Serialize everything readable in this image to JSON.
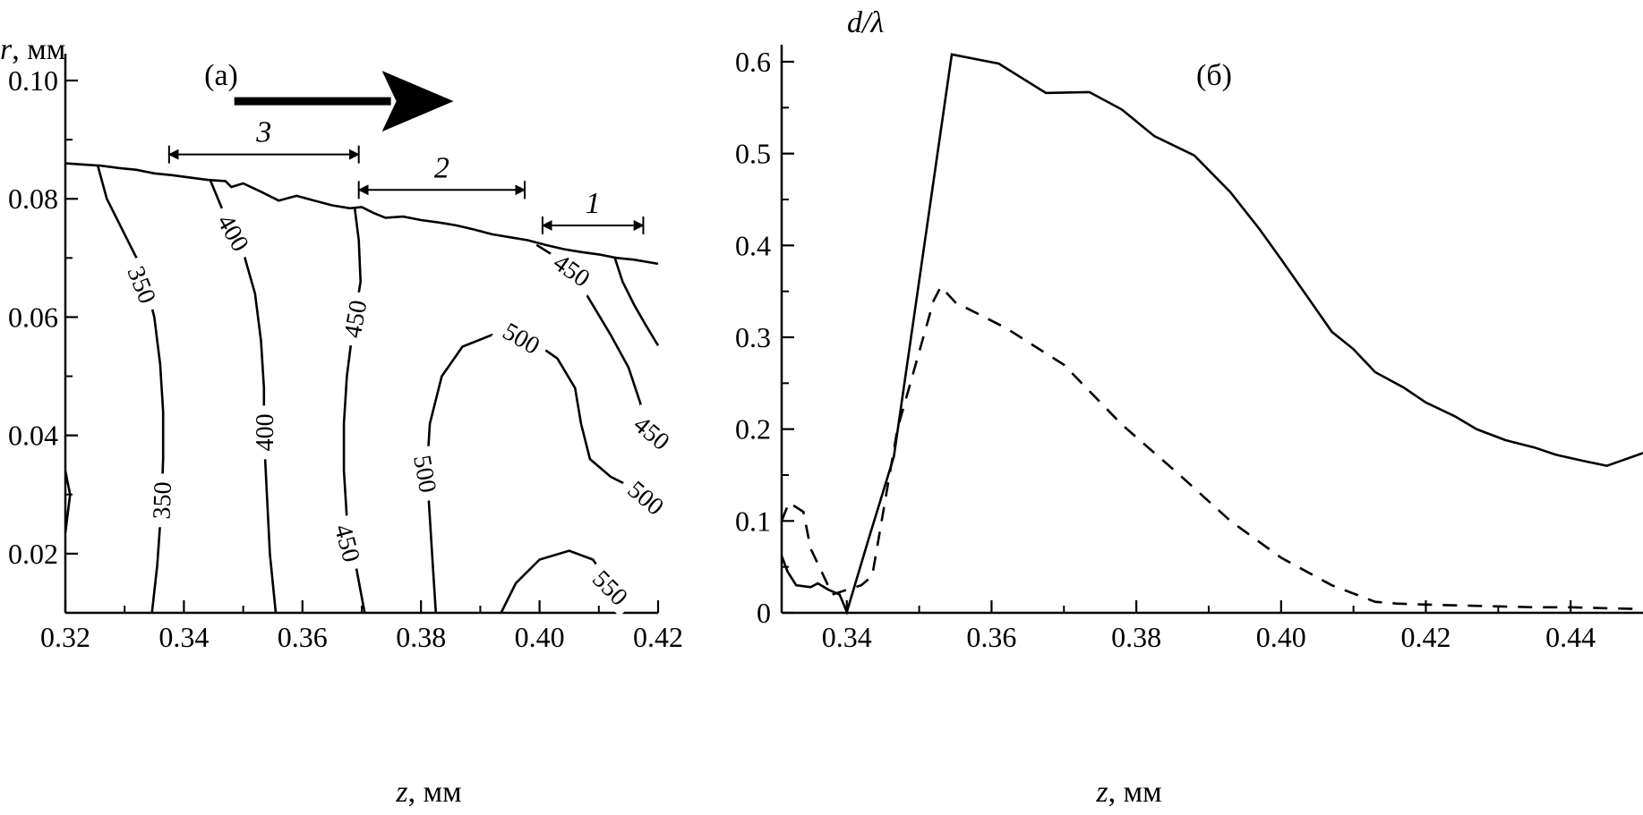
{
  "chart_data": [
    {
      "type": "line",
      "panel_label": "(а)",
      "xlabel_var": "z",
      "xlabel_unit": ", мм",
      "ylabel_var": "r",
      "ylabel_unit": ", мм",
      "xlim": [
        0.32,
        0.42
      ],
      "ylim": [
        0.01,
        0.1
      ],
      "x_ticks": [
        "0.32",
        "0.34",
        "0.36",
        "0.38",
        "0.40",
        "0.42"
      ],
      "y_ticks": [
        "0.02",
        "0.04",
        "0.06",
        "0.08",
        "0.10"
      ],
      "interface": [
        [
          0.32,
          0.086
        ],
        [
          0.323,
          0.0858
        ],
        [
          0.326,
          0.0856
        ],
        [
          0.329,
          0.0852
        ],
        [
          0.332,
          0.0849
        ],
        [
          0.335,
          0.0843
        ],
        [
          0.338,
          0.084
        ],
        [
          0.341,
          0.0836
        ],
        [
          0.344,
          0.0832
        ],
        [
          0.347,
          0.083
        ],
        [
          0.348,
          0.082
        ],
        [
          0.35,
          0.0826
        ],
        [
          0.353,
          0.0812
        ],
        [
          0.356,
          0.0797
        ],
        [
          0.359,
          0.0805
        ],
        [
          0.362,
          0.0797
        ],
        [
          0.365,
          0.0789
        ],
        [
          0.368,
          0.0784
        ],
        [
          0.37,
          0.0786
        ],
        [
          0.372,
          0.0776
        ],
        [
          0.374,
          0.0768
        ],
        [
          0.377,
          0.077
        ],
        [
          0.38,
          0.0764
        ],
        [
          0.383,
          0.076
        ],
        [
          0.386,
          0.0755
        ],
        [
          0.389,
          0.0748
        ],
        [
          0.392,
          0.074
        ],
        [
          0.395,
          0.0735
        ],
        [
          0.398,
          0.073
        ],
        [
          0.401,
          0.0722
        ],
        [
          0.404,
          0.0715
        ],
        [
          0.407,
          0.071
        ],
        [
          0.41,
          0.0706
        ],
        [
          0.413,
          0.07
        ],
        [
          0.416,
          0.0697
        ],
        [
          0.42,
          0.069
        ]
      ],
      "contours": [
        {
          "level": "350",
          "points": [
            [
              0.3255,
              0.0855
            ],
            [
              0.327,
              0.08
            ],
            [
              0.33,
              0.074
            ],
            [
              0.333,
              0.068
            ],
            [
              0.335,
              0.06
            ],
            [
              0.336,
              0.052
            ],
            [
              0.3365,
              0.044
            ],
            [
              0.3365,
              0.036
            ],
            [
              0.3362,
              0.028
            ],
            [
              0.3355,
              0.018
            ],
            [
              0.3346,
              0.01
            ]
          ],
          "labels": [
            {
              "text": "350",
              "at": [
                0.333,
                0.0655
              ],
              "rot": 68
            },
            {
              "text": "350",
              "at": [
                0.3362,
                0.029
              ],
              "rot": -88
            }
          ]
        },
        {
          "level": "400",
          "points": [
            [
              0.3445,
              0.083
            ],
            [
              0.347,
              0.077
            ],
            [
              0.35,
              0.071
            ],
            [
              0.352,
              0.064
            ],
            [
              0.353,
              0.056
            ],
            [
              0.3535,
              0.048
            ],
            [
              0.3535,
              0.04
            ],
            [
              0.354,
              0.03
            ],
            [
              0.3545,
              0.02
            ],
            [
              0.3555,
              0.01
            ]
          ],
          "labels": [
            {
              "text": "400",
              "at": [
                0.3484,
                0.0743
              ],
              "rot": 60
            },
            {
              "text": "400",
              "at": [
                0.3535,
                0.0405
              ],
              "rot": -90
            }
          ]
        },
        {
          "level": "450",
          "points": [
            [
              0.3688,
              0.0785
            ],
            [
              0.3695,
              0.073
            ],
            [
              0.3698,
              0.066
            ],
            [
              0.3685,
              0.058
            ],
            [
              0.3675,
              0.05
            ],
            [
              0.367,
              0.042
            ],
            [
              0.367,
              0.034
            ],
            [
              0.3675,
              0.026
            ],
            [
              0.369,
              0.018
            ],
            [
              0.3705,
              0.01
            ]
          ],
          "labels": [
            {
              "text": "450",
              "at": [
                0.3688,
                0.0597
              ],
              "rot": -80
            },
            {
              "text": "450",
              "at": [
                0.3677,
                0.0218
              ],
              "rot": 75
            }
          ]
        },
        {
          "level": "450",
          "points": [
            [
              0.3995,
              0.0722
            ],
            [
              0.403,
              0.07
            ],
            [
              0.406,
              0.067
            ],
            [
              0.409,
              0.062
            ],
            [
              0.412,
              0.057
            ],
            [
              0.415,
              0.0515
            ],
            [
              0.417,
              0.0455
            ],
            [
              0.418,
              0.041
            ],
            [
              0.4205,
              0.039
            ]
          ],
          "labels": [
            {
              "text": "450",
              "at": [
                0.4055,
                0.068
              ],
              "rot": 35
            },
            {
              "text": "450",
              "at": [
                0.419,
                0.0405
              ],
              "rot": 40
            }
          ]
        },
        {
          "level": "",
          "points": [
            [
              0.4127,
              0.07
            ],
            [
              0.414,
              0.066
            ],
            [
              0.416,
              0.062
            ],
            [
              0.418,
              0.0585
            ],
            [
              0.42,
              0.0552
            ]
          ],
          "labels": []
        },
        {
          "level": "500",
          "points": [
            [
              0.3825,
              0.01
            ],
            [
              0.382,
              0.018
            ],
            [
              0.3815,
              0.026
            ],
            [
              0.381,
              0.034
            ],
            [
              0.3815,
              0.042
            ],
            [
              0.3835,
              0.05
            ],
            [
              0.387,
              0.055
            ],
            [
              0.392,
              0.057
            ],
            [
              0.398,
              0.0565
            ],
            [
              0.403,
              0.053
            ],
            [
              0.406,
              0.048
            ],
            [
              0.407,
              0.042
            ],
            [
              0.4085,
              0.036
            ],
            [
              0.412,
              0.033
            ],
            [
              0.417,
              0.0305
            ],
            [
              0.4205,
              0.0285
            ]
          ],
          "labels": [
            {
              "text": "500",
              "at": [
                0.3808,
                0.0335
              ],
              "rot": 80
            },
            {
              "text": "500",
              "at": [
                0.397,
                0.0565
              ],
              "rot": 30
            },
            {
              "text": "500",
              "at": [
                0.418,
                0.0295
              ],
              "rot": 40
            }
          ]
        },
        {
          "level": "550",
          "points": [
            [
              0.3935,
              0.01
            ],
            [
              0.396,
              0.015
            ],
            [
              0.4,
              0.019
            ],
            [
              0.405,
              0.0205
            ],
            [
              0.409,
              0.019
            ],
            [
              0.4125,
              0.014
            ],
            [
              0.4145,
              0.0105
            ]
          ],
          "labels": [
            {
              "text": "550",
              "at": [
                0.412,
                0.0143
              ],
              "rot": 45
            }
          ]
        },
        {
          "level": "",
          "points": [
            [
              0.32,
              0.034
            ],
            [
              0.3208,
              0.03
            ],
            [
              0.32,
              0.0235
            ]
          ],
          "labels": []
        }
      ],
      "region_markers": [
        {
          "label": "3",
          "x1": 0.3375,
          "x2": 0.3695,
          "y": 0.0875
        },
        {
          "label": "2",
          "x1": 0.3695,
          "x2": 0.3975,
          "y": 0.0815
        },
        {
          "label": "1",
          "x1": 0.4005,
          "x2": 0.4175,
          "y": 0.0755
        }
      ],
      "arrow_annotation": {
        "x1": 0.3485,
        "x2": 0.3855,
        "y": 0.0965
      }
    },
    {
      "type": "line",
      "panel_label": "(б)",
      "ylabel": "d/λ",
      "xlabel_var": "z",
      "xlabel_unit": ", мм",
      "xlim": [
        0.331,
        0.45
      ],
      "ylim": [
        0,
        0.62
      ],
      "x_ticks": [
        {
          "v": 0.34,
          "t": "0.34"
        },
        {
          "v": 0.36,
          "t": "0.36"
        },
        {
          "v": 0.38,
          "t": "0.38"
        },
        {
          "v": 0.4,
          "t": "0.40"
        },
        {
          "v": 0.42,
          "t": "0.42"
        },
        {
          "v": 0.44,
          "t": "0.44"
        }
      ],
      "y_ticks": [
        {
          "v": 0,
          "t": "0"
        },
        {
          "v": 0.1,
          "t": "0.1"
        },
        {
          "v": 0.2,
          "t": "0.2"
        },
        {
          "v": 0.3,
          "t": "0.3"
        },
        {
          "v": 0.4,
          "t": "0.4"
        },
        {
          "v": 0.5,
          "t": "0.5"
        },
        {
          "v": 0.6,
          "t": "0.6"
        }
      ],
      "series": [
        {
          "style": "solid",
          "x": [
            0.331,
            0.3318,
            0.333,
            0.335,
            0.336,
            0.3375,
            0.339,
            0.34,
            0.343,
            0.3465,
            0.3545,
            0.361,
            0.3675,
            0.3735,
            0.378,
            0.3825,
            0.388,
            0.393,
            0.397,
            0.4,
            0.404,
            0.407,
            0.41,
            0.413,
            0.417,
            0.42,
            0.424,
            0.427,
            0.431,
            0.435,
            0.438,
            0.442,
            0.445,
            0.45
          ],
          "values": [
            0.062,
            0.045,
            0.03,
            0.028,
            0.032,
            0.025,
            0.02,
            0.001,
            0.08,
            0.17,
            0.608,
            0.598,
            0.566,
            0.567,
            0.548,
            0.519,
            0.498,
            0.458,
            0.418,
            0.385,
            0.34,
            0.306,
            0.287,
            0.262,
            0.245,
            0.229,
            0.214,
            0.2,
            0.188,
            0.18,
            0.172,
            0.165,
            0.16,
            0.174
          ]
        },
        {
          "style": "dashed",
          "x": [
            0.331,
            0.332,
            0.334,
            0.335,
            0.3365,
            0.338,
            0.34,
            0.342,
            0.3435,
            0.347,
            0.352,
            0.353,
            0.355,
            0.362,
            0.37,
            0.378,
            0.386,
            0.393,
            0.4,
            0.407,
            0.413,
            0.416,
            0.42,
            0.425,
            0.43,
            0.435,
            0.44,
            0.445,
            0.45
          ],
          "values": [
            0.1,
            0.12,
            0.11,
            0.07,
            0.045,
            0.02,
            0.025,
            0.03,
            0.04,
            0.2,
            0.34,
            0.355,
            0.338,
            0.31,
            0.27,
            0.205,
            0.15,
            0.1,
            0.06,
            0.03,
            0.012,
            0.01,
            0.009,
            0.008,
            0.007,
            0.006,
            0.006,
            0.005,
            0.004
          ]
        }
      ]
    }
  ]
}
